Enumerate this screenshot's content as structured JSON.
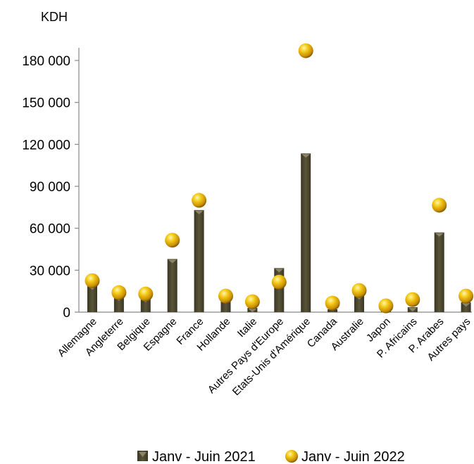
{
  "chart_data": {
    "type": "bar",
    "unit_label": "KDH",
    "categories": [
      "Allemagne",
      "Angleterre",
      "Belgique",
      "Espagne",
      "France",
      "Hollande",
      "Italie",
      "Autres Pays d'Europe",
      "Etats-Unis d'Amérique",
      "Canada",
      "Australie",
      "Japon",
      "P. Africains",
      "P. Arabes",
      "Autres pays"
    ],
    "series": [
      {
        "name": "Janv - Juin 2021",
        "style": "bar",
        "color": "#4a4530",
        "values": [
          19000,
          11000,
          10000,
          38000,
          73000,
          9000,
          3000,
          31500,
          113500,
          2000,
          12000,
          1000,
          3500,
          57000,
          7000
        ]
      },
      {
        "name": "Janv - Juin 2022",
        "style": "sphere-marker",
        "color": "#e8b400",
        "values": [
          22500,
          14000,
          13000,
          51500,
          80000,
          11500,
          7500,
          21500,
          187000,
          6500,
          15500,
          4500,
          9000,
          76500,
          11500
        ]
      }
    ],
    "ylim": [
      0,
      180000
    ],
    "yticks": [
      0,
      30000,
      60000,
      90000,
      120000,
      150000,
      180000
    ],
    "ytick_labels": [
      "0",
      "30 000",
      "60 000",
      "90 000",
      "120 000",
      "150 000",
      "180 000"
    ],
    "legend_position": "bottom"
  }
}
